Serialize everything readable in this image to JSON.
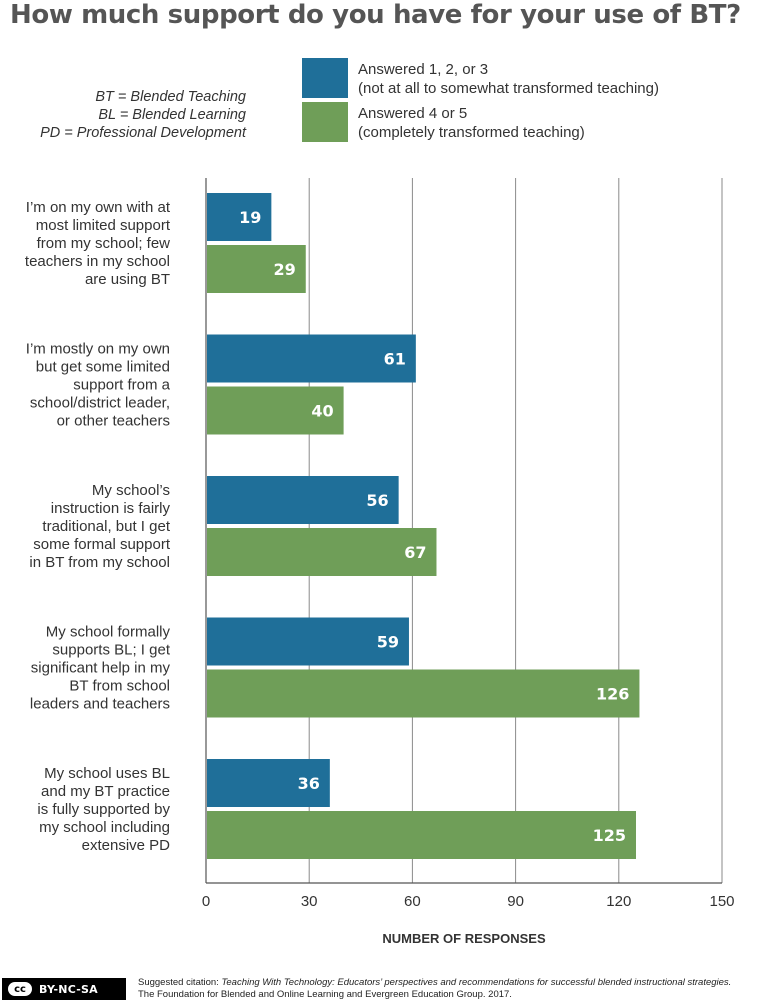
{
  "title": "How much support do you have for your use of BT?",
  "abbreviations": [
    "BT = Blended Teaching",
    "BL = Blended Learning",
    "PD = Professional Development"
  ],
  "legend": [
    {
      "line1": "Answered 1, 2, or 3",
      "line2": "(not at all to somewhat transformed teaching)",
      "color": "#1f6f99"
    },
    {
      "line1": "Answered 4 or 5",
      "line2": "(completely transformed teaching)",
      "color": "#6f9e58"
    }
  ],
  "chart_data": {
    "type": "bar",
    "orientation": "horizontal",
    "xlabel": "NUMBER OF RESPONSES",
    "xlim": [
      0,
      150
    ],
    "xticks": [
      0,
      30,
      60,
      90,
      120,
      150
    ],
    "grid": true,
    "categories": [
      [
        "I’m on my own with at",
        "most limited support",
        "from my school; few",
        "teachers in my school",
        "are using BT"
      ],
      [
        "I’m mostly on my own",
        "but get some limited",
        "support from a",
        "school/district leader,",
        "or other teachers"
      ],
      [
        "My school’s",
        "instruction is fairly",
        "traditional, but I get",
        "some formal support",
        "in BT from my school"
      ],
      [
        "My school formally",
        "supports BL; I get",
        "significant help in my",
        "BT from school",
        "leaders and teachers"
      ],
      [
        "My school uses BL",
        "and my BT practice",
        "is fully supported by",
        "my school including",
        "extensive PD"
      ]
    ],
    "series": [
      {
        "name": "Answered 1, 2, or 3",
        "color": "#1f6f99",
        "values": [
          19,
          61,
          56,
          59,
          36
        ]
      },
      {
        "name": "Answered 4 or 5",
        "color": "#6f9e58",
        "values": [
          29,
          40,
          67,
          126,
          125
        ]
      }
    ]
  },
  "footer": {
    "badge": "BY-NC-SA",
    "cc": "cc",
    "citation_prefix": "Suggested citation: ",
    "citation_title": "Teaching With Technology: Educators’ perspectives and recommendations for successful blended instructional strategies.",
    "citation_line2": "The Foundation for Blended and Online Learning and Evergreen Education Group. 2017."
  }
}
